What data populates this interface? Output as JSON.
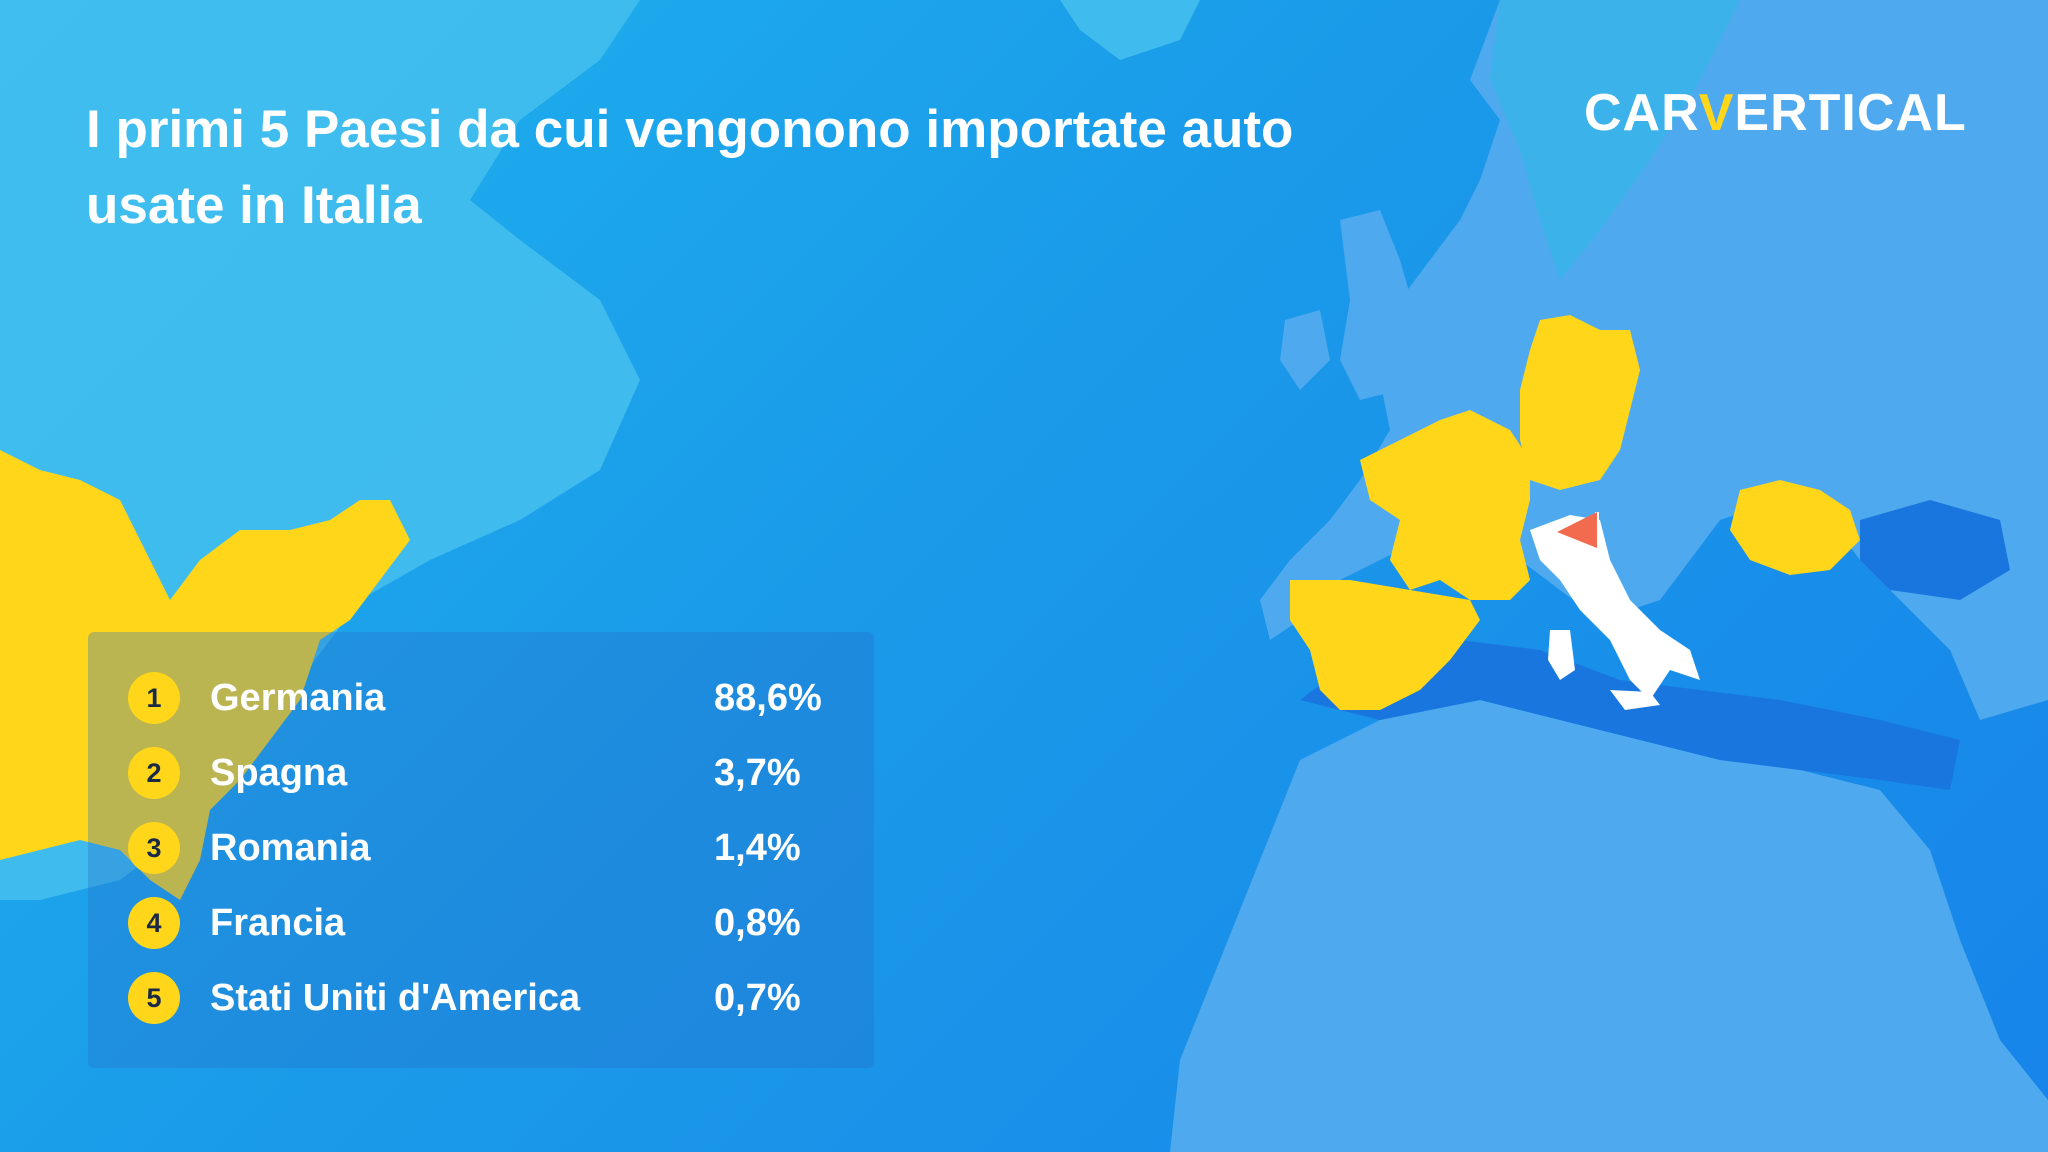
{
  "title": "I primi 5 Paesi da cui vengonono importate auto usate in Italia",
  "logo": {
    "before": "CAR",
    "highlight": "V",
    "after": "ERTICAL"
  },
  "colors": {
    "ocean": "#1a9ae9",
    "land": "#4fa9ee",
    "highlight_country": "#ffd61a",
    "italy": "#ffffff",
    "flag": "#f26b4e"
  },
  "ranking": [
    {
      "rank": "1",
      "country": "Germania",
      "value": "88,6%"
    },
    {
      "rank": "2",
      "country": "Spagna",
      "value": "3,7%"
    },
    {
      "rank": "3",
      "country": "Romania",
      "value": "1,4%"
    },
    {
      "rank": "4",
      "country": "Francia",
      "value": "0,8%"
    },
    {
      "rank": "5",
      "country": "Stati Uniti d'America",
      "value": "0,7%"
    }
  ],
  "map": {
    "highlighted_countries": [
      "Germania",
      "Spagna",
      "Romania",
      "Francia",
      "Stati Uniti d'America"
    ],
    "destination": "Italia",
    "destination_marker": "flag-icon"
  }
}
